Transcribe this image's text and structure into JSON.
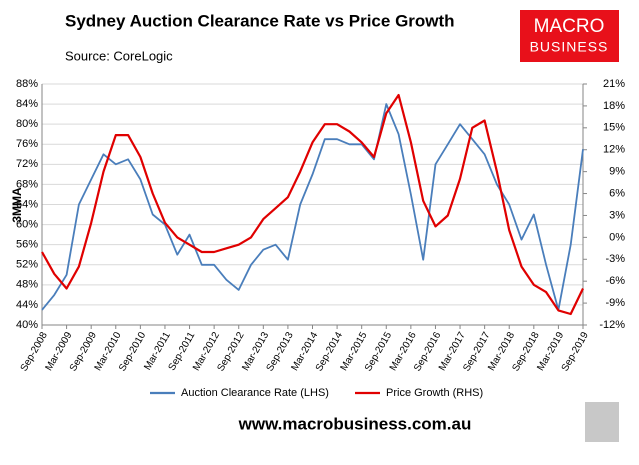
{
  "chart_data": {
    "type": "line",
    "title": "Sydney Auction Clearance Rate vs Price Growth",
    "subtitle": "Source: CoreLogic",
    "y_label": "3MMA",
    "logo_text": [
      "MACRO",
      "BUSINESS"
    ],
    "footer": "www.macrobusiness.com.au",
    "categories": [
      "Sep-2008",
      null,
      "Mar-2009",
      null,
      "Sep-2009",
      null,
      "Mar-2010",
      null,
      "Sep-2010",
      null,
      "Mar-2011",
      null,
      "Sep-2011",
      null,
      "Mar-2012",
      null,
      "Sep-2012",
      null,
      "Mar-2013",
      null,
      "Sep-2013",
      null,
      "Mar-2014",
      null,
      "Sep-2014",
      null,
      "Mar-2015",
      null,
      "Sep-2015",
      null,
      "Mar-2016",
      null,
      "Sep-2016",
      null,
      "Mar-2017",
      null,
      "Sep-2017",
      null,
      "Mar-2018",
      null,
      "Sep-2018",
      null,
      "Mar-2019",
      null,
      "Sep-2019"
    ],
    "series": [
      {
        "name": "Auction Clearance Rate (LHS)",
        "color": "#4a7ebb",
        "axis": "y",
        "values": [
          43,
          46,
          50,
          64,
          69,
          74,
          72,
          73,
          69,
          62,
          60,
          54,
          58,
          52,
          52,
          49,
          47,
          52,
          55,
          56,
          53,
          64,
          70,
          77,
          77,
          76,
          76,
          73,
          84,
          78,
          66,
          53,
          72,
          76,
          80,
          77,
          74,
          68,
          64,
          57,
          62,
          52,
          43,
          56,
          75
        ]
      },
      {
        "name": "Price Growth (RHS)",
        "color": "#e00000",
        "axis": "y2",
        "values": [
          -2,
          -5,
          -7,
          -4,
          2,
          9,
          14,
          14,
          11,
          6,
          2,
          0,
          -1,
          -2,
          -2,
          -1.5,
          -1,
          0,
          2.5,
          4,
          5.5,
          9,
          13,
          15.5,
          15.5,
          14.5,
          13,
          11,
          17,
          19.5,
          13,
          5,
          1.5,
          3,
          8,
          15,
          16,
          9,
          1,
          -4,
          -6.5,
          -7.5,
          -10,
          -10.5,
          -7
        ]
      }
    ],
    "ylim": [
      40,
      88
    ],
    "yticks": [
      {
        "value": 40,
        "label": "40%"
      },
      {
        "value": 44,
        "label": "44%"
      },
      {
        "value": 48,
        "label": "48%"
      },
      {
        "value": 52,
        "label": "52%"
      },
      {
        "value": 56,
        "label": "56%"
      },
      {
        "value": 60,
        "label": "60%"
      },
      {
        "value": 64,
        "label": "64%"
      },
      {
        "value": 68,
        "label": "68%"
      },
      {
        "value": 72,
        "label": "72%"
      },
      {
        "value": 76,
        "label": "76%"
      },
      {
        "value": 80,
        "label": "80%"
      },
      {
        "value": 84,
        "label": "84%"
      },
      {
        "value": 88,
        "label": "88%"
      }
    ],
    "y2lim": [
      -12,
      21
    ],
    "y2ticks": [
      {
        "value": -12,
        "label": "-12%"
      },
      {
        "value": -9,
        "label": "-9%"
      },
      {
        "value": -6,
        "label": "-6%"
      },
      {
        "value": -3,
        "label": "-3%"
      },
      {
        "value": 0,
        "label": "0%"
      },
      {
        "value": 3,
        "label": "3%"
      },
      {
        "value": 6,
        "label": "6%"
      },
      {
        "value": 9,
        "label": "9%"
      },
      {
        "value": 12,
        "label": "12%"
      },
      {
        "value": 15,
        "label": "15%"
      },
      {
        "value": 18,
        "label": "18%"
      },
      {
        "value": 21,
        "label": "21%"
      }
    ],
    "grid": true,
    "legend": "bottom"
  }
}
